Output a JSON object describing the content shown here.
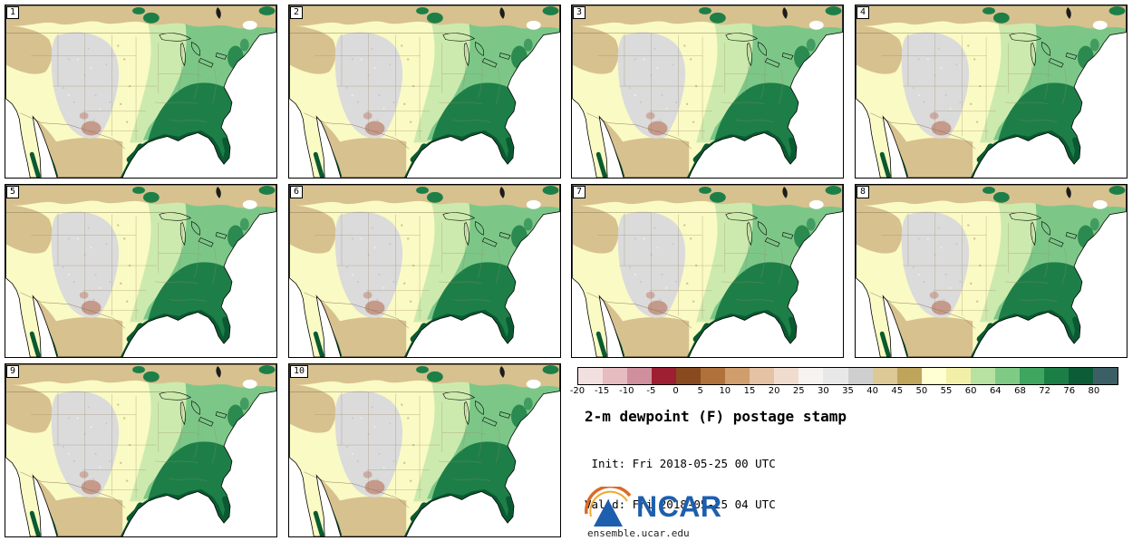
{
  "panels": {
    "numbers": [
      "1",
      "2",
      "3",
      "4",
      "5",
      "6",
      "7",
      "8",
      "9",
      "10"
    ]
  },
  "colorbar": {
    "ticks": [
      "-20",
      "-15",
      "-10",
      "-5",
      "0",
      "5",
      "10",
      "15",
      "20",
      "25",
      "30",
      "35",
      "40",
      "45",
      "50",
      "55",
      "60",
      "64",
      "68",
      "72",
      "76",
      "80"
    ],
    "colors": [
      "#f2e0e0",
      "#e6bcc1",
      "#cf8f9c",
      "#9e1f32",
      "#8a4a20",
      "#b0713a",
      "#d09e6c",
      "#e4c2a4",
      "#f0dccf",
      "#f7f3f0",
      "#e8e8e8",
      "#cfcfcf",
      "#dcc995",
      "#bfa45c",
      "#ffffd2",
      "#f2f0a8",
      "#b8e2a2",
      "#7fcb85",
      "#3fa65f",
      "#1b7f45",
      "#0d5c38",
      "#3c5f66"
    ]
  },
  "info": {
    "title": "2-m dewpoint (F) postage stamp",
    "init": " Init: Fri 2018-05-25 00 UTC",
    "valid": "Valid: Fri 2018-05-25 04 UTC"
  },
  "logo": {
    "text": "NCAR",
    "color": "#1d5fae"
  },
  "footer": {
    "url_text": "ensemble.ucar.edu"
  },
  "map_palette": {
    "ocean": "#ffffff",
    "plains": "#fafac4",
    "tan": "#d7c18f",
    "gray": "#dbdbdb",
    "lgreen": "#cdeaae",
    "green": "#7cc787",
    "dkgreen": "#1d7f47",
    "deepgreen": "#0a5a31",
    "pink": "#c69a8b",
    "stateline": "#9a8867"
  }
}
